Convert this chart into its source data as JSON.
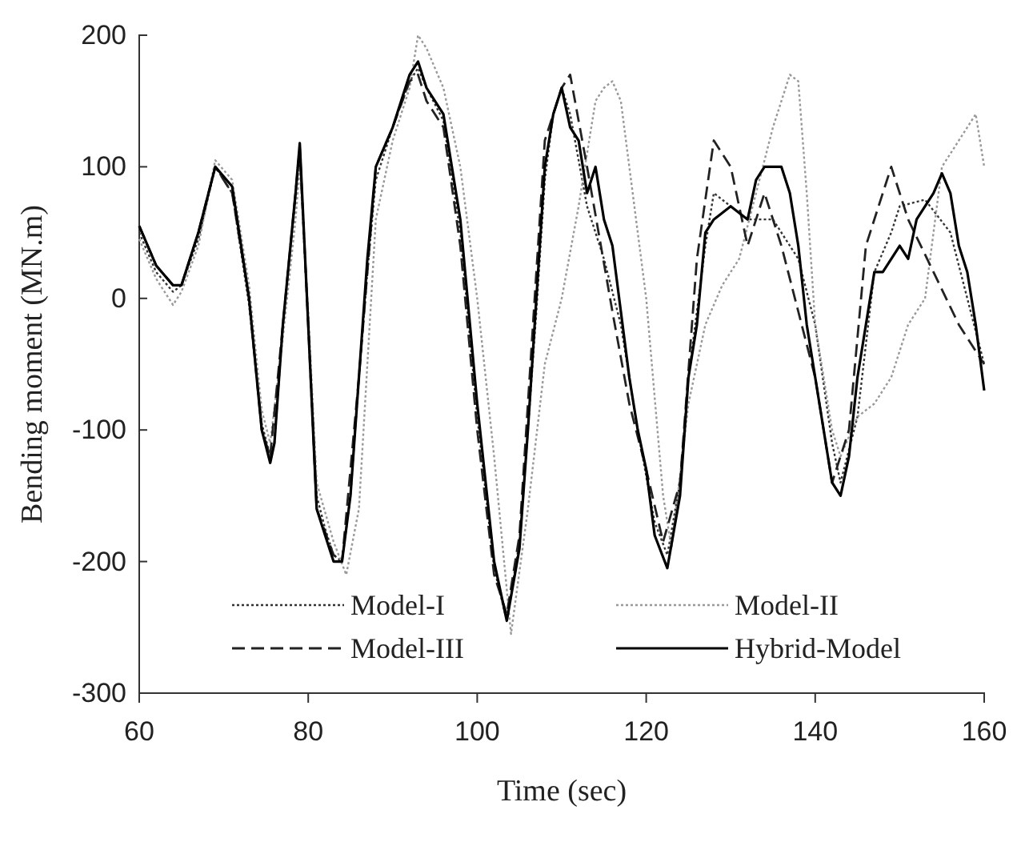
{
  "chart_data": {
    "type": "line",
    "xlabel": "Time (sec)",
    "ylabel": "Bending moment (MN.m)",
    "xlim": [
      60,
      160
    ],
    "xticks": [
      60,
      80,
      100,
      120,
      140,
      160
    ],
    "ylim": [
      -300,
      200
    ],
    "yticks": [
      -300,
      -200,
      -100,
      0,
      100,
      200
    ],
    "grid": false,
    "legend": "bottom",
    "series": [
      {
        "name": "Model-I",
        "color": "#333333",
        "line_style": "dotted",
        "x": [
          60,
          62,
          64,
          65,
          67,
          69,
          71,
          73,
          74.5,
          75.5,
          76,
          77,
          78.5,
          79,
          80,
          81,
          82,
          83,
          84,
          85,
          86,
          87,
          88,
          90,
          92,
          93,
          94,
          96,
          98,
          100,
          102,
          103.5,
          105,
          106,
          107,
          108,
          109,
          110,
          111,
          113,
          115,
          117,
          119,
          121,
          122.5,
          124,
          125,
          127,
          128,
          130,
          132,
          135,
          138,
          140,
          142,
          143,
          145,
          147,
          149,
          150,
          153,
          156,
          158,
          160
        ],
        "values": [
          50,
          20,
          5,
          10,
          45,
          100,
          80,
          -5,
          -95,
          -120,
          -110,
          -20,
          75,
          110,
          -20,
          -150,
          -175,
          -195,
          -200,
          -150,
          -60,
          20,
          90,
          130,
          165,
          175,
          160,
          135,
          50,
          -90,
          -205,
          -245,
          -185,
          -100,
          -10,
          90,
          140,
          160,
          140,
          70,
          30,
          -20,
          -100,
          -170,
          -195,
          -140,
          -60,
          40,
          80,
          70,
          60,
          60,
          30,
          -20,
          -110,
          -140,
          -90,
          20,
          50,
          70,
          75,
          50,
          0,
          -50
        ]
      },
      {
        "name": "Model-II",
        "color": "#999999",
        "line_style": "dotted",
        "x": [
          60,
          62,
          64,
          65,
          67,
          69,
          71,
          73,
          74.5,
          75.5,
          77,
          78.5,
          79,
          80,
          81,
          83,
          84.5,
          86,
          88,
          90,
          92,
          93,
          94,
          96,
          98,
          100,
          102,
          104,
          106,
          108,
          110,
          112,
          114,
          115,
          116,
          117,
          118,
          120,
          122,
          123,
          125,
          127,
          129,
          131,
          133,
          135,
          137,
          138,
          139,
          140,
          142,
          143,
          145,
          147,
          149,
          151,
          153,
          155,
          157,
          159,
          160
        ],
        "values": [
          45,
          15,
          -5,
          5,
          40,
          105,
          90,
          10,
          -85,
          -110,
          -30,
          60,
          100,
          -10,
          -140,
          -185,
          -210,
          -160,
          60,
          120,
          160,
          200,
          190,
          160,
          100,
          0,
          -120,
          -255,
          -160,
          -50,
          0,
          70,
          150,
          160,
          165,
          150,
          100,
          0,
          -150,
          -190,
          -80,
          -20,
          10,
          30,
          80,
          130,
          170,
          165,
          80,
          -20,
          -100,
          -120,
          -90,
          -80,
          -60,
          -20,
          0,
          100,
          120,
          140,
          100
        ]
      },
      {
        "name": "Model-III",
        "color": "#222222",
        "line_style": "dashed",
        "x": [
          60,
          62,
          64,
          65,
          67,
          69,
          71,
          73,
          74.5,
          75.5,
          77,
          78.5,
          79,
          80,
          81,
          83,
          84,
          86,
          88,
          90,
          92,
          93,
          94,
          96,
          98,
          100,
          102,
          103.5,
          105,
          107,
          108,
          110,
          111,
          113,
          116,
          118,
          120,
          122,
          124,
          126,
          128,
          130,
          132,
          134,
          136,
          138,
          140,
          142,
          144,
          146,
          148,
          149,
          151,
          154,
          157,
          160
        ],
        "values": [
          55,
          25,
          10,
          10,
          50,
          100,
          80,
          0,
          -100,
          -120,
          -20,
          80,
          115,
          -20,
          -160,
          -195,
          -200,
          -60,
          100,
          130,
          165,
          170,
          150,
          130,
          40,
          -100,
          -210,
          -240,
          -180,
          20,
          120,
          160,
          170,
          100,
          -10,
          -80,
          -130,
          -185,
          -140,
          30,
          120,
          100,
          40,
          80,
          40,
          -10,
          -60,
          -140,
          -100,
          40,
          80,
          100,
          60,
          20,
          -20,
          -50
        ]
      },
      {
        "name": "Hybrid-Model",
        "color": "#000000",
        "line_style": "solid",
        "x": [
          60,
          62,
          64,
          65,
          67,
          69,
          71,
          73,
          74.5,
          75.5,
          76,
          77,
          78.5,
          79,
          80,
          81,
          82,
          83,
          84,
          85,
          86,
          87,
          88,
          90,
          92,
          93,
          94,
          96,
          98,
          100,
          102,
          103.5,
          105,
          106,
          107,
          108,
          109,
          110,
          111,
          112,
          113,
          114,
          115,
          116,
          117,
          118,
          119,
          120,
          121,
          122.5,
          124,
          125,
          126,
          127,
          128,
          130,
          132,
          133,
          134,
          136,
          137,
          138,
          139,
          140,
          141,
          142,
          143,
          144,
          145,
          146,
          147,
          148,
          150,
          151,
          152,
          154,
          155,
          156,
          157,
          158,
          159,
          160
        ],
        "values": [
          55,
          25,
          10,
          10,
          50,
          100,
          85,
          0,
          -100,
          -125,
          -110,
          -20,
          80,
          118,
          -20,
          -160,
          -180,
          -200,
          -200,
          -150,
          -60,
          30,
          100,
          130,
          170,
          180,
          160,
          140,
          60,
          -80,
          -200,
          -245,
          -190,
          -100,
          0,
          100,
          140,
          160,
          130,
          120,
          80,
          100,
          60,
          40,
          -10,
          -60,
          -100,
          -130,
          -180,
          -205,
          -150,
          -60,
          -20,
          50,
          60,
          70,
          60,
          90,
          100,
          100,
          80,
          40,
          -20,
          -60,
          -100,
          -140,
          -150,
          -120,
          -60,
          -20,
          20,
          20,
          40,
          30,
          60,
          80,
          95,
          80,
          40,
          20,
          -20,
          -70
        ]
      }
    ]
  }
}
